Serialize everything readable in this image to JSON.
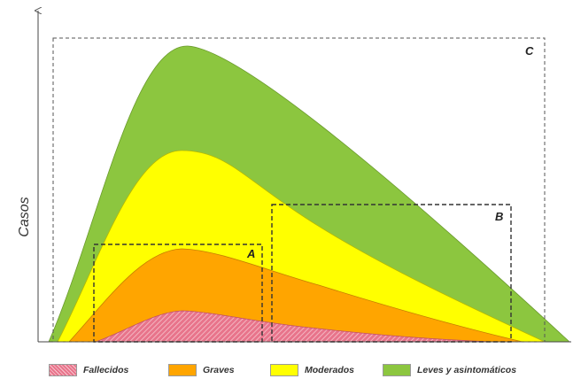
{
  "diagram": {
    "y_axis_label": "Casos",
    "boxes": {
      "a": "A",
      "b": "B",
      "c": "C"
    },
    "legend": [
      {
        "label": "Fallecidos",
        "color": "#e8748b",
        "pattern": "hatched"
      },
      {
        "label": "Graves",
        "color": "#ffa500"
      },
      {
        "label": "Moderados",
        "color": "#ffff00"
      },
      {
        "label": "Leves y asintomáticos",
        "color": "#8cc63f"
      }
    ]
  }
}
